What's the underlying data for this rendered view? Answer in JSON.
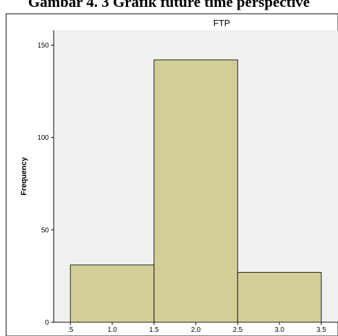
{
  "document": {
    "caption": "Gambar 4. 3 Grafik future time perspective"
  },
  "chart_data": {
    "type": "bar",
    "title": "FTP",
    "xlabel": "",
    "ylabel": "Frequency",
    "bins": [
      {
        "x0": 0.5,
        "x1": 1.5,
        "value": 31
      },
      {
        "x0": 1.5,
        "x1": 2.5,
        "value": 142
      },
      {
        "x0": 2.5,
        "x1": 3.5,
        "value": 27
      }
    ],
    "xlim": [
      0.3,
      3.7
    ],
    "ylim": [
      0,
      158
    ],
    "x_ticks": [
      0.5,
      1.0,
      1.5,
      2.0,
      2.5,
      3.0,
      3.5
    ],
    "x_tick_labels": [
      ".5",
      "1.0",
      "1.5",
      "2.0",
      "2.5",
      "3.0",
      "3.5"
    ],
    "y_ticks": [
      0,
      50,
      100,
      150
    ],
    "y_tick_labels": [
      "0",
      "50",
      "100",
      "150"
    ],
    "grid": false,
    "colors": {
      "bar_fill": "#d3ce98",
      "bar_stroke": "#1a1a1a",
      "plot_background": "#f0f0f0",
      "frame": "#000000"
    }
  }
}
